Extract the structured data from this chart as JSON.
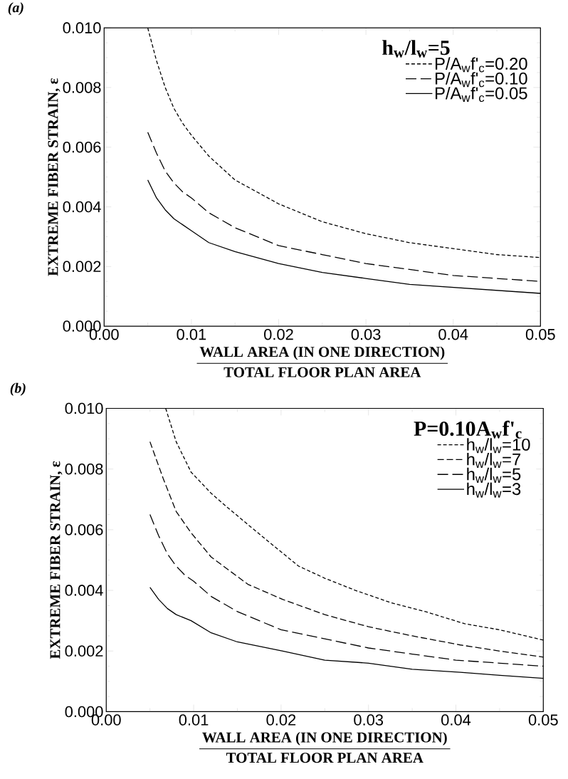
{
  "chart_data": [
    {
      "type": "line",
      "title": "(a)",
      "xlabel": "WALL AREA (IN ONE DIRECTION)",
      "ylabel": "EXTREME FIBER STRAIN, ε",
      "annotations": [
        "TOTAL FLOOR PLAN AREA"
      ],
      "legend_title": "h$_{w}$/l$_{w}$=5",
      "legend": "top right",
      "xlim": [
        0,
        0.05
      ],
      "ylim": [
        0,
        0.01
      ],
      "xticks": [
        {
          "value": 0,
          "label": "0.00"
        },
        {
          "value": 0.005,
          "label": null
        },
        {
          "value": 0.01,
          "label": "0.01"
        },
        {
          "value": 0.015,
          "label": null
        },
        {
          "value": 0.02,
          "label": "0.02"
        },
        {
          "value": 0.025,
          "label": null
        },
        {
          "value": 0.03,
          "label": "0.03"
        },
        {
          "value": 0.035,
          "label": null
        },
        {
          "value": 0.04,
          "label": "0.04"
        },
        {
          "value": 0.045,
          "label": null
        },
        {
          "value": 0.05,
          "label": "0.05"
        }
      ],
      "yticks": [
        {
          "value": 0,
          "label": "0.000"
        },
        {
          "value": 0.0005,
          "label": null
        },
        {
          "value": 0.001,
          "label": null
        },
        {
          "value": 0.0015,
          "label": null
        },
        {
          "value": 0.002,
          "label": "0.002"
        },
        {
          "value": 0.0025,
          "label": null
        },
        {
          "value": 0.003,
          "label": null
        },
        {
          "value": 0.0035,
          "label": null
        },
        {
          "value": 0.004,
          "label": "0.004"
        },
        {
          "value": 0.0045,
          "label": null
        },
        {
          "value": 0.005,
          "label": null
        },
        {
          "value": 0.0055,
          "label": null
        },
        {
          "value": 0.006,
          "label": "0.006"
        },
        {
          "value": 0.0065,
          "label": null
        },
        {
          "value": 0.007,
          "label": null
        },
        {
          "value": 0.0075,
          "label": null
        },
        {
          "value": 0.008,
          "label": "0.008"
        },
        {
          "value": 0.0085,
          "label": null
        },
        {
          "value": 0.009,
          "label": null
        },
        {
          "value": 0.0095,
          "label": null
        },
        {
          "value": 0.01,
          "label": "0.010"
        }
      ],
      "series": [
        {
          "name": "P/A$_{w}$f'$_{c}$=0.20",
          "color": "#000000",
          "line_style": "dotted",
          "x": [
            0.005,
            0.006,
            0.007,
            0.008,
            0.009,
            0.01,
            0.012,
            0.015,
            0.02,
            0.025,
            0.03,
            0.035,
            0.04,
            0.045,
            0.05
          ],
          "values": [
            0.01,
            0.0089,
            0.008,
            0.0073,
            0.0068,
            0.0064,
            0.0057,
            0.0049,
            0.0041,
            0.0035,
            0.0031,
            0.0028,
            0.0026,
            0.0024,
            0.0023
          ]
        },
        {
          "name": "P/A$_{w}$f'$_{c}$=0.10",
          "color": "#000000",
          "line_style": "dashed",
          "x": [
            0.005,
            0.006,
            0.007,
            0.008,
            0.009,
            0.01,
            0.012,
            0.015,
            0.02,
            0.025,
            0.03,
            0.035,
            0.04,
            0.045,
            0.05
          ],
          "values": [
            0.0065,
            0.0058,
            0.0052,
            0.0048,
            0.0045,
            0.0043,
            0.0038,
            0.0033,
            0.0027,
            0.0024,
            0.0021,
            0.0019,
            0.0017,
            0.0016,
            0.0015
          ]
        },
        {
          "name": "P/A$_{w}$f'$_{c}$=0.05",
          "color": "#000000",
          "line_style": "solid",
          "x": [
            0.005,
            0.006,
            0.007,
            0.008,
            0.009,
            0.01,
            0.012,
            0.015,
            0.02,
            0.025,
            0.03,
            0.035,
            0.04,
            0.045,
            0.05
          ],
          "values": [
            0.0049,
            0.0043,
            0.0039,
            0.0036,
            0.0034,
            0.0032,
            0.0028,
            0.0025,
            0.0021,
            0.0018,
            0.0016,
            0.0014,
            0.0013,
            0.0012,
            0.0011
          ]
        }
      ]
    },
    {
      "type": "line",
      "title": "(b)",
      "xlabel": "WALL AREA (IN ONE DIRECTION)",
      "ylabel": "EXTREME FIBER STRAIN, ε",
      "annotations": [
        "TOTAL FLOOR PLAN AREA"
      ],
      "legend_title": "P=0.10A$_{w}$f'$_{c}$",
      "legend": "top right",
      "xlim": [
        0,
        0.05
      ],
      "ylim": [
        0,
        0.01
      ],
      "xticks": [
        {
          "value": 0,
          "label": "0.00"
        },
        {
          "value": 0.005,
          "label": null
        },
        {
          "value": 0.01,
          "label": "0.01"
        },
        {
          "value": 0.015,
          "label": null
        },
        {
          "value": 0.02,
          "label": "0.02"
        },
        {
          "value": 0.025,
          "label": null
        },
        {
          "value": 0.03,
          "label": "0.03"
        },
        {
          "value": 0.035,
          "label": null
        },
        {
          "value": 0.04,
          "label": "0.04"
        },
        {
          "value": 0.045,
          "label": null
        },
        {
          "value": 0.05,
          "label": "0.05"
        }
      ],
      "yticks": [
        {
          "value": 0,
          "label": "0.000"
        },
        {
          "value": 0.0005,
          "label": null
        },
        {
          "value": 0.001,
          "label": null
        },
        {
          "value": 0.0015,
          "label": null
        },
        {
          "value": 0.002,
          "label": "0.002"
        },
        {
          "value": 0.0025,
          "label": null
        },
        {
          "value": 0.003,
          "label": null
        },
        {
          "value": 0.0035,
          "label": null
        },
        {
          "value": 0.004,
          "label": "0.004"
        },
        {
          "value": 0.0045,
          "label": null
        },
        {
          "value": 0.005,
          "label": null
        },
        {
          "value": 0.0055,
          "label": null
        },
        {
          "value": 0.006,
          "label": "0.006"
        },
        {
          "value": 0.0065,
          "label": null
        },
        {
          "value": 0.007,
          "label": null
        },
        {
          "value": 0.0075,
          "label": null
        },
        {
          "value": 0.008,
          "label": "0.008"
        },
        {
          "value": 0.0085,
          "label": null
        },
        {
          "value": 0.009,
          "label": null
        },
        {
          "value": 0.0095,
          "label": null
        },
        {
          "value": 0.01,
          "label": "0.010"
        }
      ],
      "series": [
        {
          "name": "h$_{w}$/l$_{w}$=10",
          "color": "#000000",
          "line_style": "dotted",
          "x": [
            0.0068,
            0.008,
            0.0097,
            0.012,
            0.0138,
            0.0165,
            0.0186,
            0.022,
            0.025,
            0.0285,
            0.0325,
            0.0365,
            0.041,
            0.045,
            0.05
          ],
          "values": [
            0.01,
            0.0089,
            0.0079,
            0.0072,
            0.00675,
            0.0061,
            0.0056,
            0.0048,
            0.0044,
            0.004,
            0.0036,
            0.0033,
            0.0029,
            0.0027,
            0.00236
          ]
        },
        {
          "name": "h$_{w}$/l$_{w}$=7",
          "color": "#000000",
          "line_style": "dashed",
          "x": [
            0.005,
            0.0065,
            0.008,
            0.0097,
            0.012,
            0.0162,
            0.0202,
            0.025,
            0.03,
            0.035,
            0.0405,
            0.045,
            0.05
          ],
          "values": [
            0.0089,
            0.0077,
            0.0066,
            0.0059,
            0.0051,
            0.0042,
            0.0037,
            0.0032,
            0.0028,
            0.0025,
            0.0022,
            0.002,
            0.0018
          ]
        },
        {
          "name": "h$_{w}$/l$_{w}$=5",
          "color": "#000000",
          "line_style": "dashed",
          "x": [
            0.005,
            0.006,
            0.007,
            0.008,
            0.009,
            0.01,
            0.012,
            0.015,
            0.02,
            0.025,
            0.03,
            0.035,
            0.04,
            0.045,
            0.05
          ],
          "values": [
            0.0065,
            0.0058,
            0.0052,
            0.0048,
            0.0045,
            0.0043,
            0.0038,
            0.0033,
            0.0027,
            0.0024,
            0.0021,
            0.0019,
            0.0017,
            0.0016,
            0.0015
          ]
        },
        {
          "name": "h$_{w}$/l$_{w}$=3",
          "color": "#000000",
          "line_style": "solid",
          "x": [
            0.005,
            0.006,
            0.007,
            0.008,
            0.0097,
            0.012,
            0.015,
            0.0202,
            0.025,
            0.03,
            0.035,
            0.0405,
            0.045,
            0.05
          ],
          "values": [
            0.0041,
            0.0037,
            0.0034,
            0.0032,
            0.003,
            0.0026,
            0.0023,
            0.002,
            0.0017,
            0.0016,
            0.0014,
            0.0013,
            0.0012,
            0.0011
          ]
        }
      ]
    }
  ]
}
